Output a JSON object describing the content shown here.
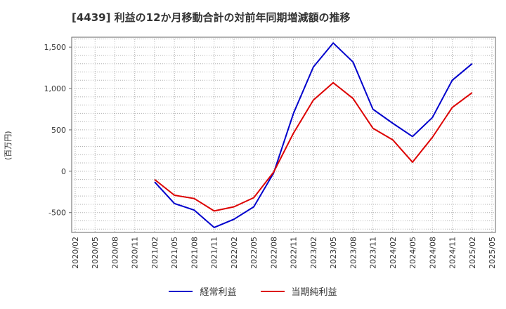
{
  "colors": {
    "blue": "#0000cc",
    "red": "#dd0000",
    "grid": "#b0b0b0",
    "axis": "#666666"
  },
  "chart_data": {
    "type": "line",
    "title": "[4439]  利益の12か月移動合計の対前年同期増減額の推移",
    "ylabel": "(百万円)",
    "xlabel": "",
    "x": [
      "2020/02",
      "2020/05",
      "2020/08",
      "2020/11",
      "2021/02",
      "2021/05",
      "2021/08",
      "2021/11",
      "2022/02",
      "2022/05",
      "2022/08",
      "2022/11",
      "2023/02",
      "2023/05",
      "2023/08",
      "2023/11",
      "2024/02",
      "2024/05",
      "2024/08",
      "2024/11",
      "2025/02",
      "2025/05"
    ],
    "ylim": [
      -740,
      1620
    ],
    "yticks": [
      -500,
      0,
      500,
      1000,
      1500
    ],
    "ytick_labels": [
      "-500",
      "0",
      "500",
      "1,000",
      "1,500"
    ],
    "grid": true,
    "legend_position": "bottom",
    "series": [
      {
        "name": "経常利益",
        "color": "#0000cc",
        "values": [
          null,
          null,
          null,
          null,
          -130,
          -390,
          -470,
          -680,
          -580,
          -430,
          -20,
          700,
          1260,
          1550,
          1320,
          750,
          580,
          420,
          650,
          1100,
          1300,
          null
        ]
      },
      {
        "name": "当期純利益",
        "color": "#dd0000",
        "values": [
          null,
          null,
          null,
          null,
          -100,
          -290,
          -330,
          -480,
          -430,
          -320,
          -10,
          460,
          860,
          1070,
          880,
          520,
          380,
          110,
          410,
          770,
          950,
          null
        ]
      }
    ]
  }
}
